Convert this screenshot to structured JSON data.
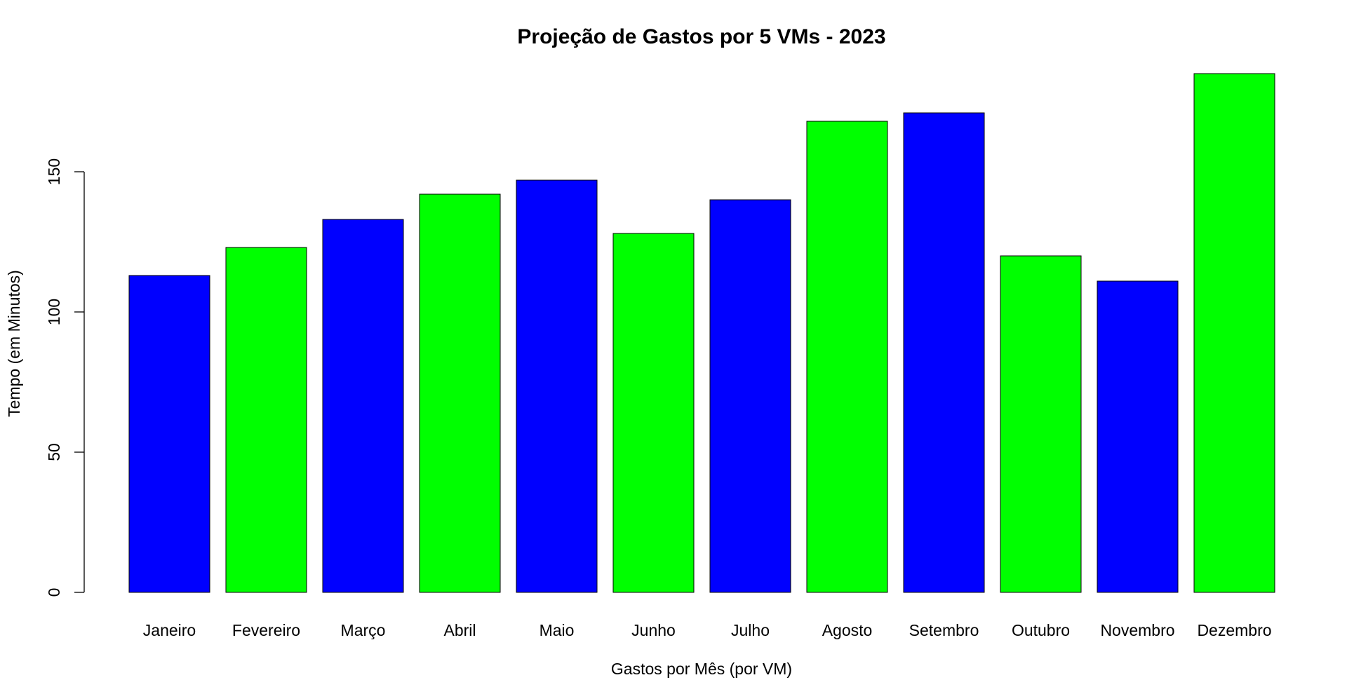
{
  "chart_data": {
    "type": "bar",
    "title": "Projeção de Gastos por 5 VMs - 2023",
    "xlabel": "Gastos por Mês (por VM)",
    "ylabel": "Tempo (em Minutos)",
    "categories": [
      "Janeiro",
      "Fevereiro",
      "Março",
      "Abril",
      "Maio",
      "Junho",
      "Julho",
      "Agosto",
      "Setembro",
      "Outubro",
      "Novembro",
      "Dezembro"
    ],
    "values": [
      113,
      123,
      133,
      142,
      147,
      128,
      140,
      168,
      171,
      120,
      111,
      185
    ],
    "colors": [
      "#0000ff",
      "#00ff00",
      "#0000ff",
      "#00ff00",
      "#0000ff",
      "#00ff00",
      "#0000ff",
      "#00ff00",
      "#0000ff",
      "#00ff00",
      "#0000ff",
      "#00ff00"
    ],
    "yticks": [
      0,
      50,
      100,
      150
    ],
    "ylim": [
      0,
      185
    ],
    "grid": false,
    "legend": "none"
  }
}
